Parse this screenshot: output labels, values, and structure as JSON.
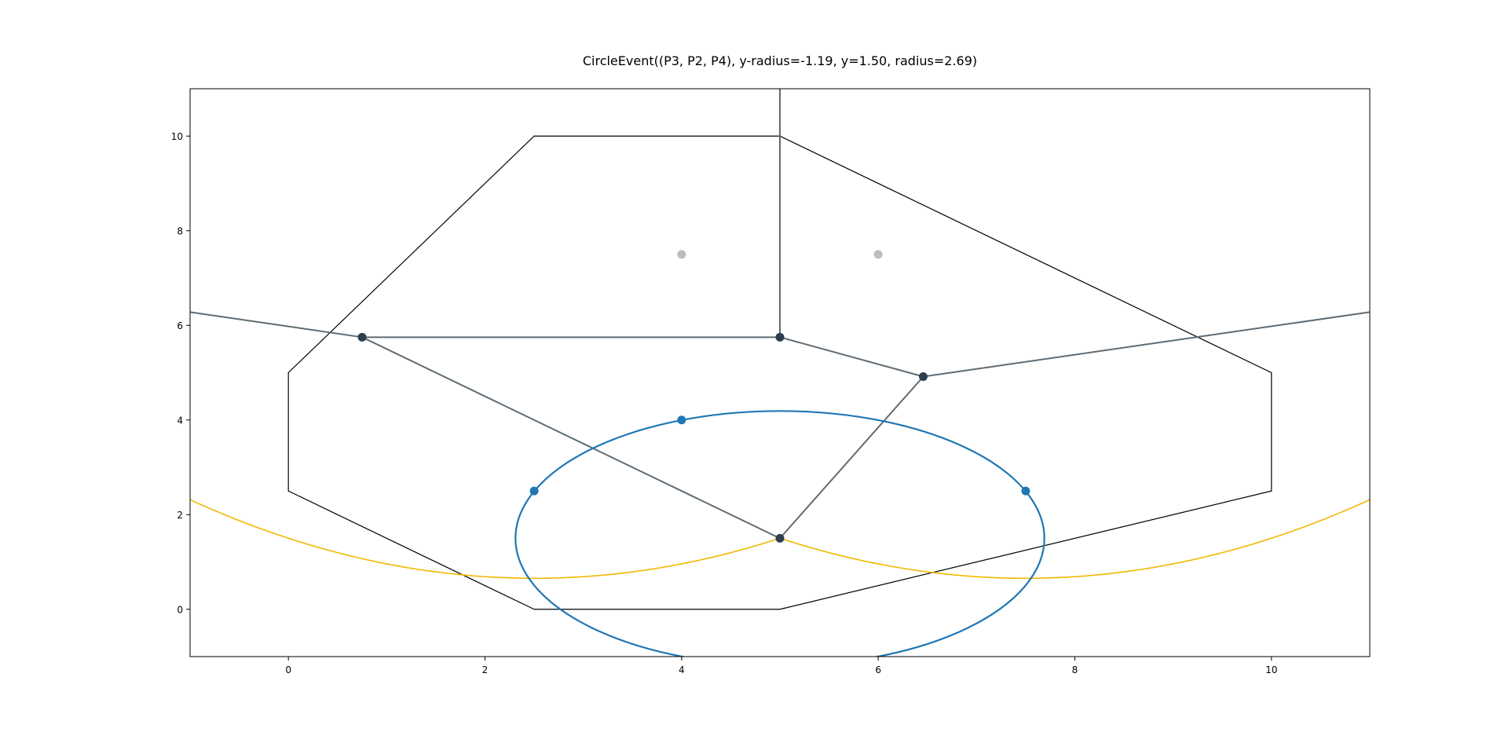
{
  "chart_data": {
    "type": "line",
    "title": "CircleEvent((P3, P2, P4), y-radius=-1.19, y=1.50, radius=2.69)",
    "xlabel": "",
    "ylabel": "",
    "xlim": [
      -1,
      11
    ],
    "ylim": [
      -1,
      11
    ],
    "xticks": [
      "0",
      "2",
      "4",
      "6",
      "8",
      "10"
    ],
    "yticks": [
      "0",
      "2",
      "4",
      "6",
      "8",
      "10"
    ],
    "grid": false,
    "bounding_polygon": {
      "color": "#000000",
      "points": [
        [
          2.5,
          0
        ],
        [
          5,
          0
        ],
        [
          10,
          2.5
        ],
        [
          10,
          5
        ],
        [
          5,
          10
        ],
        [
          2.5,
          10
        ],
        [
          0,
          5
        ],
        [
          0,
          2.5
        ],
        [
          2.5,
          0
        ]
      ]
    },
    "voronoi_edges": {
      "color": "#5f6b73",
      "segments": [
        [
          [
            5,
            11
          ],
          [
            5,
            5.75
          ]
        ],
        [
          [
            0.75,
            5.75
          ],
          [
            5,
            5.75
          ]
        ],
        [
          [
            5,
            5.75
          ],
          [
            6.458,
            4.917
          ]
        ],
        [
          [
            6.458,
            4.917
          ],
          [
            11,
            6.28
          ]
        ],
        [
          [
            -1,
            6.28
          ],
          [
            0.75,
            5.75
          ]
        ],
        [
          [
            0.75,
            5.75
          ],
          [
            5,
            1.5
          ]
        ],
        [
          [
            5,
            1.5
          ],
          [
            6.458,
            4.917
          ]
        ]
      ]
    },
    "vertices": {
      "color": "#2c3e50",
      "points": [
        [
          0.75,
          5.75
        ],
        [
          5,
          5.75
        ],
        [
          6.458,
          4.917
        ],
        [
          5,
          1.5
        ]
      ]
    },
    "inactive_sites": {
      "color": "#bdbdbd",
      "points": [
        [
          4,
          7.5
        ],
        [
          6,
          7.5
        ]
      ]
    },
    "active_sites": {
      "color": "#1f77b4",
      "points": [
        [
          2.5,
          2.5
        ],
        [
          4,
          4
        ],
        [
          7.5,
          2.5
        ]
      ]
    },
    "circle": {
      "color": "#1f77b4",
      "center": [
        5,
        1.5
      ],
      "radius": 2.69
    },
    "beachline": {
      "color": "#f2b800",
      "sweep_y": -1.19,
      "arcs": [
        {
          "focus": [
            2.5,
            2.5
          ],
          "x_range": [
            -1,
            5
          ]
        },
        {
          "focus": [
            7.5,
            2.5
          ],
          "x_range": [
            5,
            11
          ]
        }
      ]
    }
  }
}
